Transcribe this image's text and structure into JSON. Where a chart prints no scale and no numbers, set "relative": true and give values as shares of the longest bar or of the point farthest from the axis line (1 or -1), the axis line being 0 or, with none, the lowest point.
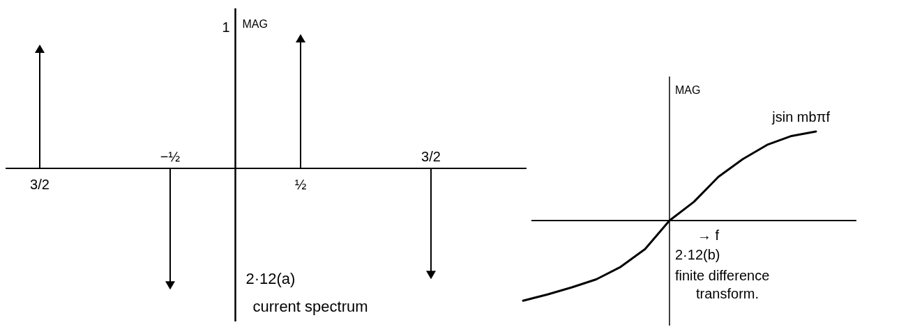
{
  "chart_data": [
    {
      "type": "lollipop",
      "relative": true,
      "ylabel": "MAG",
      "marker": "triangle",
      "categories": [
        "3/2",
        "−½",
        "½",
        "3/2"
      ],
      "values": [
        0.92,
        -0.9,
        1,
        -0.82
      ],
      "color": "#000000",
      "annotations": [
        "1",
        "2·12(a)",
        "current spectrum"
      ]
    },
    {
      "type": "line",
      "relative": true,
      "ylabel": "MAG",
      "xlabel": "→ f",
      "categories": [
        null,
        null,
        null,
        null,
        null,
        null,
        null,
        null,
        null,
        null,
        null,
        null,
        null
      ],
      "series": [
        {
          "name": "jsin mbπf",
          "color": "#000000",
          "values": [
            -0.9,
            -0.83,
            -0.75,
            -0.66,
            -0.52,
            -0.32,
            0,
            0.21,
            0.49,
            0.69,
            0.85,
            0.95,
            1
          ]
        }
      ],
      "annotations": [
        "2·12(b)",
        "finite difference transform."
      ]
    }
  ]
}
